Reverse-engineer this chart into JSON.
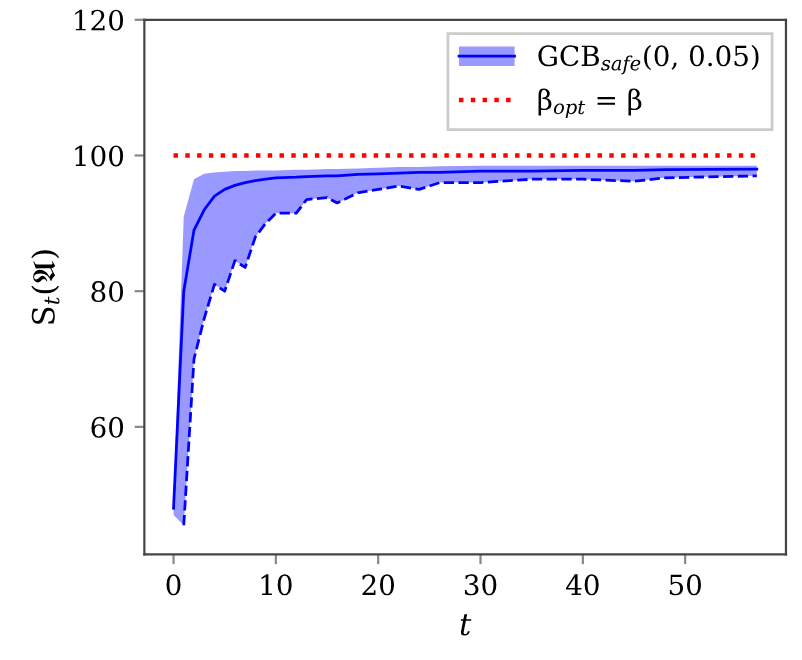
{
  "chart_data": {
    "type": "line",
    "xlabel": "t",
    "ylabel": "S$_{t}$(𝔄)",
    "xlim": [
      -2.85,
      59.85
    ],
    "ylim": [
      41.2,
      120
    ],
    "xticks": [
      0,
      10,
      20,
      30,
      40,
      50
    ],
    "yticks": [
      60,
      80,
      100,
      120
    ],
    "grid": false,
    "legend": "top right",
    "marker": "none",
    "series": [
      {
        "name": "GCB$_{safe}$(0, 0.05)",
        "color": "#0000ff",
        "line_style": "solid",
        "x": [
          0,
          1,
          2,
          3,
          4,
          5,
          6,
          7,
          8,
          9,
          10,
          12,
          13,
          15,
          16,
          18,
          20,
          22,
          24,
          26,
          30,
          35,
          40,
          45,
          48,
          57
        ],
        "values": [
          48,
          80,
          89,
          92,
          94,
          95,
          95.6,
          96,
          96.3,
          96.5,
          96.7,
          96.8,
          96.9,
          97,
          97,
          97.2,
          97.3,
          97.4,
          97.5,
          97.5,
          97.7,
          97.7,
          97.8,
          97.8,
          97.9,
          98
        ],
        "upper": [
          49,
          91,
          96.5,
          97.3,
          97.5,
          97.6,
          97.7,
          97.7,
          97.8,
          97.8,
          97.8,
          97.9,
          97.9,
          98,
          98,
          98.1,
          98.2,
          98.3,
          98.3,
          98.4,
          98.5,
          98.5,
          98.5,
          98.5,
          98.5,
          98.5
        ],
        "lower": [
          47,
          45.5,
          70,
          76,
          81,
          80,
          84.5,
          83.5,
          88,
          90,
          91.5,
          91.5,
          93.5,
          93.8,
          93,
          94.5,
          95,
          95.5,
          95,
          96,
          96,
          96.5,
          96.5,
          96.2,
          96.7,
          97
        ]
      },
      {
        "color": "#0000ff",
        "line_style": "dashed",
        "x": [
          1,
          2,
          3,
          4,
          5,
          6,
          7,
          8,
          9,
          10,
          12,
          13,
          15,
          16,
          18,
          20,
          22,
          24,
          26,
          30,
          35,
          40,
          45,
          48,
          57
        ],
        "values": [
          45.5,
          70,
          76,
          81,
          80,
          84.5,
          83.5,
          88,
          90,
          91.5,
          91.5,
          93.5,
          93.8,
          93,
          94.5,
          95,
          95.5,
          95,
          96,
          96,
          96.5,
          96.5,
          96.2,
          96.7,
          97
        ]
      }
    ],
    "ref_lines": [
      {
        "axis": "y",
        "value": 100,
        "label": "β$_{opt}$ = β",
        "color": "#ff0000",
        "line_style": "dotted"
      }
    ]
  }
}
